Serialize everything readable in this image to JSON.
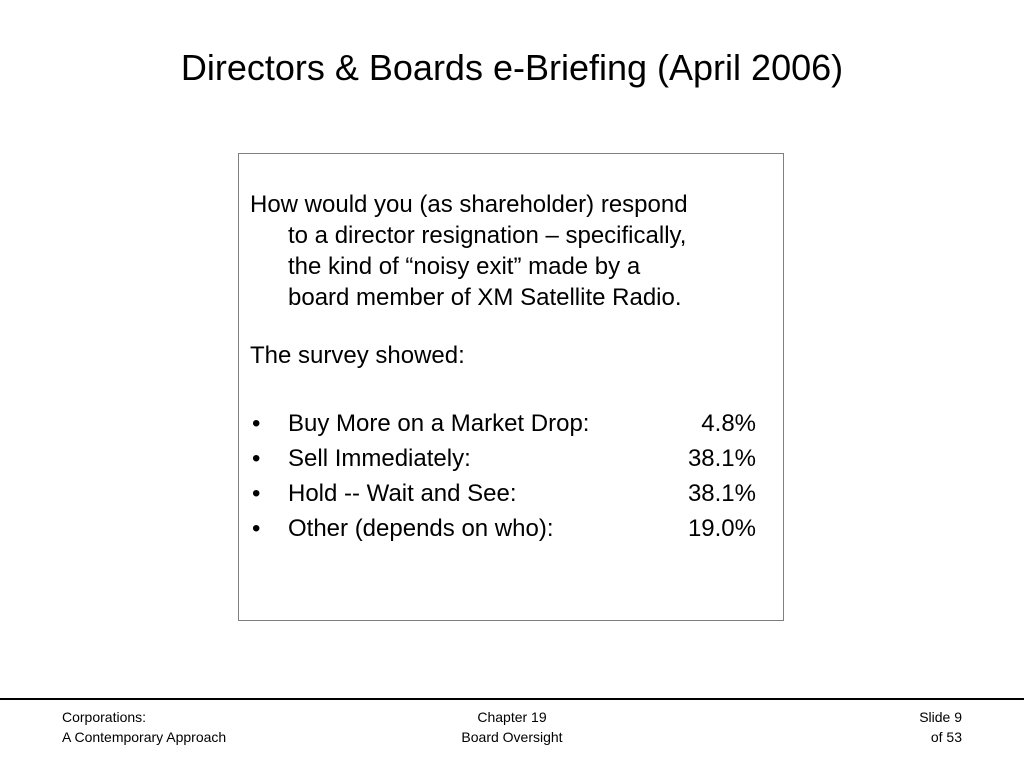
{
  "slide": {
    "title": "Directors & Boards e-Briefing (April 2006)"
  },
  "content": {
    "question_lines": [
      "How would you (as shareholder) respond",
      "to a director resignation – specifically,",
      "the kind of “noisy exit” made by a",
      "board member of XM Satellite Radio."
    ],
    "survey_label": "The survey showed:",
    "bullet_symbol": "•",
    "results": [
      {
        "label": "Buy More on a Market Drop:",
        "value": "4.8%"
      },
      {
        "label": "Sell Immediately:",
        "value": "38.1%"
      },
      {
        "label": "Hold -- Wait and See:",
        "value": "38.1%"
      },
      {
        "label": "Other (depends on who):",
        "value": "19.0%"
      }
    ]
  },
  "footer": {
    "left_line1": "Corporations:",
    "left_line2": "A Contemporary Approach",
    "center_line1": "Chapter 19",
    "center_line2": "Board Oversight",
    "right_line1": "Slide 9",
    "right_line2": "of 53"
  }
}
